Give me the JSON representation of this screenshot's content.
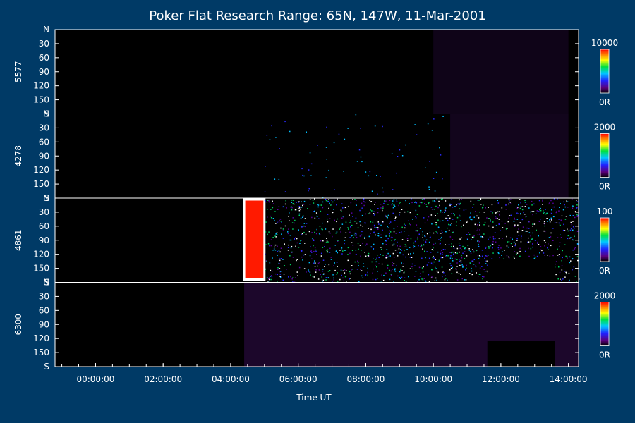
{
  "chart_data": {
    "type": "heatmap",
    "title": "Poker Flat Research Range: 65N, 147W, 11-Mar-2001",
    "xlabel": "Time UT",
    "x_ticks": [
      "00:00:00",
      "02:00:00",
      "04:00:00",
      "06:00:00",
      "08:00:00",
      "10:00:00",
      "12:00:00",
      "14:00:00"
    ],
    "x_tick_hours": [
      0,
      2,
      4,
      6,
      8,
      10,
      12,
      14
    ],
    "xlim_hours": [
      -1.2,
      14.3
    ],
    "ylim_deg": [
      0,
      180
    ],
    "y_ticks": [
      "N",
      "30",
      "60",
      "90",
      "120",
      "150",
      "S"
    ],
    "y_tick_values": [
      0,
      30,
      60,
      90,
      120,
      150,
      180
    ],
    "panels": [
      {
        "label": "5577",
        "cbar_max": "10000",
        "cbar_min": "0R",
        "activity": [
          {
            "t0": 10.0,
            "t1": 14.0,
            "level": 0.12,
            "kind": "glow"
          }
        ]
      },
      {
        "label": "4278",
        "cbar_max": "2000",
        "cbar_min": "0R",
        "activity": [
          {
            "t0": 5.0,
            "t1": 10.5,
            "level": 0.04,
            "kind": "noise"
          },
          {
            "t0": 10.5,
            "t1": 14.0,
            "level": 0.14,
            "kind": "glow"
          }
        ]
      },
      {
        "label": "4861",
        "cbar_max": "100",
        "cbar_min": "0R",
        "activity": [
          {
            "t0": 4.4,
            "t1": 5.0,
            "level": 1.0,
            "kind": "saturated"
          },
          {
            "t0": 5.0,
            "t1": 14.3,
            "level": 0.5,
            "kind": "noise"
          }
        ],
        "data_gaps": [
          {
            "t0": 11.6,
            "t1": 13.6,
            "y0": 130,
            "y1": 180
          }
        ]
      },
      {
        "label": "6300",
        "cbar_max": "2000",
        "cbar_min": "0R",
        "activity": [
          {
            "t0": 4.4,
            "t1": 14.3,
            "level": 0.22,
            "kind": "glow"
          }
        ],
        "data_gaps": [
          {
            "t0": 11.6,
            "t1": 13.6,
            "y0": 125,
            "y1": 180
          }
        ]
      }
    ]
  }
}
